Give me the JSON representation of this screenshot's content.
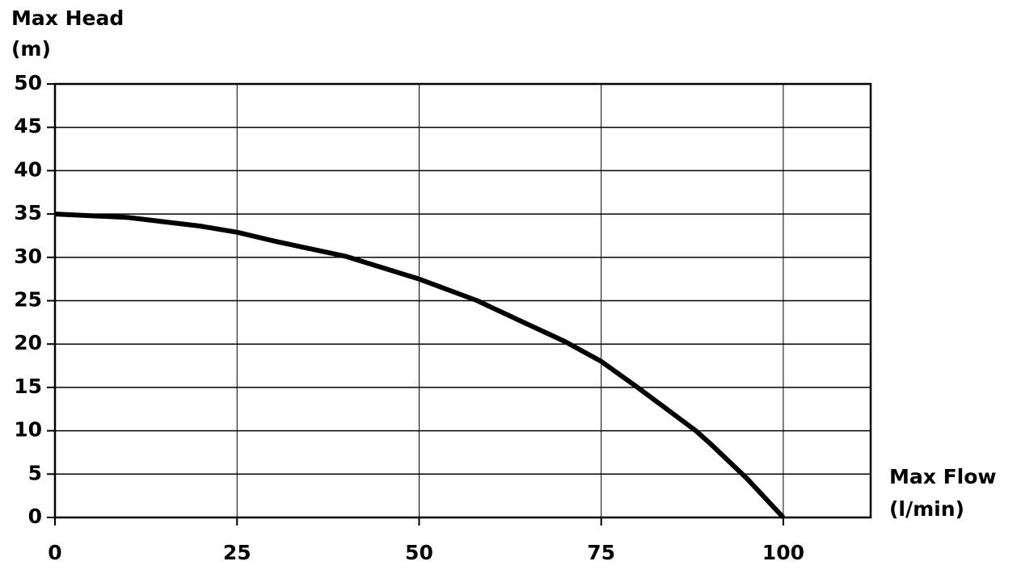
{
  "chart_data": {
    "type": "line",
    "ylabel": [
      "Max Head",
      "(m)"
    ],
    "xlabel": [
      "Max Flow",
      "(l/min)"
    ],
    "x": [
      0,
      10,
      20,
      25,
      30,
      40,
      50,
      58,
      60,
      70,
      75,
      80,
      88,
      90,
      95,
      100
    ],
    "values": [
      35,
      34.6,
      33.6,
      32.9,
      31.9,
      30.1,
      27.5,
      25,
      24.2,
      20.3,
      18,
      15,
      10,
      8.5,
      4.5,
      0
    ],
    "color": "#000000",
    "xlim": [
      0,
      112
    ],
    "xticks": [
      0,
      25,
      50,
      75,
      100
    ],
    "ylim": [
      0,
      50
    ],
    "yticks": [
      0,
      5,
      10,
      15,
      20,
      25,
      30,
      35,
      40,
      45,
      50
    ],
    "grid": true
  }
}
